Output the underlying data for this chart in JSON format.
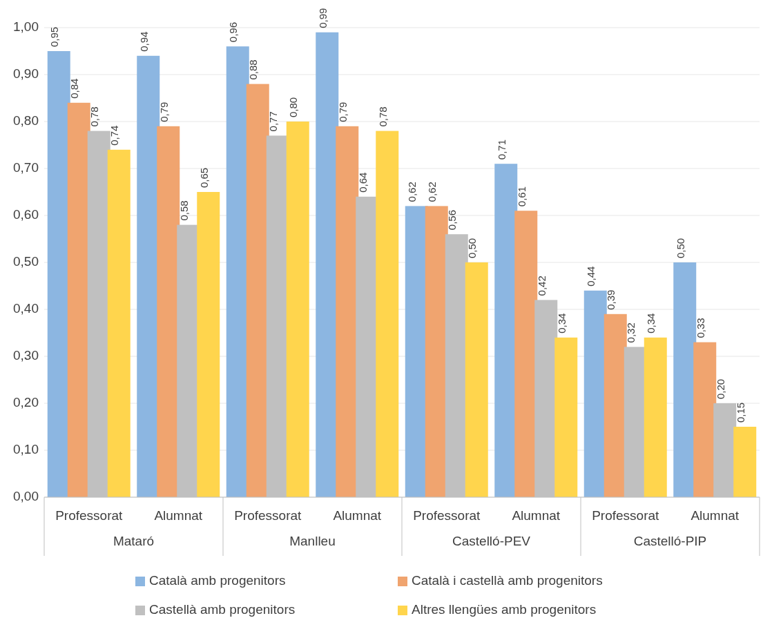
{
  "chart_data": {
    "type": "bar",
    "categories": [
      "Professorat",
      "Alumnat",
      "Professorat",
      "Alumnat",
      "Professorat",
      "Alumnat",
      "Professorat",
      "Alumnat"
    ],
    "series": [
      {
        "name": "Català amb progenitors",
        "color": "#8cb6e1",
        "values": [
          0.95,
          0.94,
          0.96,
          0.99,
          0.62,
          0.71,
          0.44,
          0.5
        ],
        "value_labels": [
          "0,95",
          "0,94",
          "0,96",
          "0,99",
          "0,62",
          "0,71",
          "0,44",
          "0,50"
        ]
      },
      {
        "name": "Català i castellà amb progenitors",
        "color": "#f0a46f",
        "values": [
          0.84,
          0.79,
          0.88,
          0.79,
          0.62,
          0.61,
          0.39,
          0.33
        ],
        "value_labels": [
          "0,84",
          "0,79",
          "0,88",
          "0,79",
          "0,62",
          "0,61",
          "0,39",
          "0,33"
        ]
      },
      {
        "name": "Castellà amb progenitors",
        "color": "#c0c0c0",
        "values": [
          0.78,
          0.58,
          0.77,
          0.64,
          0.56,
          0.42,
          0.32,
          0.2
        ],
        "value_labels": [
          "0,78",
          "0,58",
          "0,77",
          "0,64",
          "0,56",
          "0,42",
          "0,32",
          "0,20"
        ]
      },
      {
        "name": "Altres llengües amb progenitors",
        "color": "#ffd54d",
        "values": [
          0.74,
          0.65,
          0.8,
          0.78,
          0.5,
          0.34,
          0.34,
          0.15
        ],
        "value_labels": [
          "0,74",
          "0,65",
          "0,80",
          "0,78",
          "0,50",
          "0,34",
          "0,34",
          "0,15"
        ]
      }
    ],
    "annotations": [
      "Mataró",
      "Manlleu",
      "Castelló-PEV",
      "Castelló-PIP"
    ],
    "ylim": [
      0,
      1
    ],
    "yticks": [
      {
        "value": 0,
        "label": "0,00"
      },
      {
        "value": 0.1,
        "label": "0,10"
      },
      {
        "value": 0.2,
        "label": "0,20"
      },
      {
        "value": 0.3,
        "label": "0,30"
      },
      {
        "value": 0.4,
        "label": "0,40"
      },
      {
        "value": 0.5,
        "label": "0,50"
      },
      {
        "value": 0.6,
        "label": "0,60"
      },
      {
        "value": 0.7,
        "label": "0,70"
      },
      {
        "value": 0.8,
        "label": "0,80"
      },
      {
        "value": 0.9,
        "label": "0,90"
      },
      {
        "value": 1,
        "label": "1,00"
      }
    ],
    "grid": "y",
    "legend": "bottom"
  }
}
